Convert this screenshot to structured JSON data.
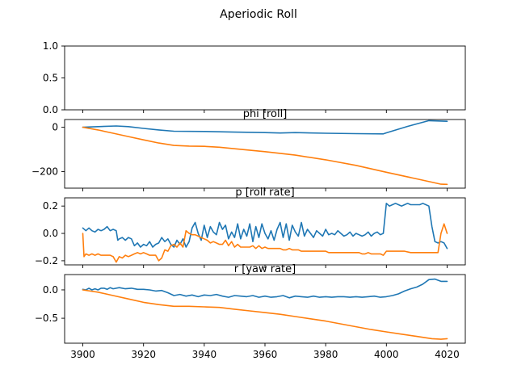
{
  "figure": {
    "suptitle": "Aperiodic Roll",
    "colors": {
      "series_1": "#1f77b4",
      "series_2": "#ff7f0e"
    }
  },
  "chart_data": [
    {
      "type": "line",
      "title": "",
      "xlim": [
        3894,
        4026
      ],
      "ylim": [
        0,
        1
      ],
      "yticks": [
        "0.0",
        "0.5",
        "1.0"
      ],
      "ytick_values": [
        0,
        0.5,
        1.0
      ],
      "xticks": [],
      "series": []
    },
    {
      "type": "line",
      "title": "phi [roll]",
      "xlim": [
        3894,
        4026
      ],
      "ylim": [
        -275,
        35
      ],
      "yticks": [
        "0",
        "−200"
      ],
      "ytick_values": [
        0,
        -200
      ],
      "xticks": [],
      "series": [
        {
          "color": "#1f77b4",
          "x": [
            3900,
            3905,
            3911,
            3915,
            3920,
            3925,
            3930,
            3940,
            3950,
            3960,
            3965,
            3970,
            3980,
            3990,
            3999,
            4000,
            4007,
            4014,
            4020
          ],
          "y": [
            0,
            3,
            6,
            3,
            -5,
            -12,
            -18,
            -19,
            -22,
            -24,
            -26,
            -24,
            -27,
            -29,
            -30,
            -25,
            4,
            30,
            27
          ]
        },
        {
          "color": "#ff7f0e",
          "x": [
            3900,
            3905,
            3910,
            3915,
            3920,
            3925,
            3930,
            3935,
            3940,
            3945,
            3950,
            3960,
            3970,
            3980,
            3990,
            4000,
            4010,
            4015,
            4018,
            4020
          ],
          "y": [
            0,
            -12,
            -27,
            -42,
            -57,
            -71,
            -82,
            -85,
            -86,
            -90,
            -97,
            -110,
            -126,
            -147,
            -172,
            -203,
            -233,
            -248,
            -257,
            -258
          ]
        }
      ]
    },
    {
      "type": "line",
      "title": "p [roll rate]",
      "xlim": [
        3894,
        4026
      ],
      "ylim": [
        -0.23,
        0.26
      ],
      "yticks": [
        "0.2",
        "0.0",
        "−0.2"
      ],
      "ytick_values": [
        0.2,
        0,
        -0.2
      ],
      "xticks": [],
      "series": [
        {
          "color": "#1f77b4",
          "x": [
            3900,
            3901,
            3902,
            3903,
            3904,
            3905,
            3906,
            3907,
            3908,
            3909,
            3910,
            3911,
            3911.5,
            3912,
            3913,
            3914,
            3915,
            3916,
            3917,
            3918,
            3919,
            3920,
            3921,
            3922,
            3923,
            3924,
            3925,
            3926,
            3927,
            3928,
            3929,
            3930,
            3931,
            3932,
            3933,
            3934,
            3935,
            3936,
            3937,
            3938,
            3939,
            3940,
            3941,
            3942,
            3943,
            3944,
            3945,
            3946,
            3947,
            3948,
            3949,
            3950,
            3951,
            3952,
            3953,
            3954,
            3955,
            3956,
            3957,
            3958,
            3959,
            3960,
            3961,
            3962,
            3963,
            3964,
            3965,
            3966,
            3967,
            3968,
            3969,
            3970,
            3971,
            3972,
            3973,
            3974,
            3975,
            3976,
            3977,
            3978,
            3979,
            3980,
            3981,
            3982,
            3983,
            3984,
            3985,
            3986,
            3987,
            3988,
            3989,
            3990,
            3991,
            3992,
            3993,
            3994,
            3995,
            3996,
            3997,
            3998,
            3999,
            4000,
            4001,
            4002,
            4003,
            4004,
            4005,
            4006,
            4007,
            4008,
            4009,
            4010,
            4011,
            4012,
            4013,
            4014,
            4015,
            4016,
            4017,
            4018,
            4019,
            4020
          ],
          "y": [
            0.04,
            0.02,
            0.04,
            0.02,
            0.01,
            0.03,
            0.02,
            0.03,
            0.05,
            0.02,
            0.03,
            0.02,
            -0.05,
            -0.04,
            -0.03,
            -0.05,
            -0.03,
            -0.04,
            -0.09,
            -0.07,
            -0.1,
            -0.08,
            -0.09,
            -0.06,
            -0.1,
            -0.08,
            -0.07,
            -0.03,
            -0.06,
            -0.04,
            -0.08,
            -0.1,
            -0.05,
            -0.08,
            -0.04,
            -0.1,
            -0.06,
            0.04,
            0.08,
            0.0,
            -0.05,
            0.06,
            -0.03,
            0.05,
            0.01,
            -0.01,
            0.08,
            0.03,
            0.06,
            -0.04,
            0.01,
            -0.03,
            0.07,
            -0.04,
            0.03,
            -0.02,
            0.07,
            -0.06,
            0.05,
            -0.03,
            0.07,
            0.0,
            -0.04,
            0.02,
            -0.05,
            0.03,
            0.08,
            -0.03,
            0.07,
            -0.05,
            0.06,
            0.01,
            -0.02,
            0.08,
            -0.02,
            0.03,
            0.0,
            -0.03,
            0.02,
            0.0,
            -0.02,
            0.03,
            -0.01,
            0.0,
            -0.01,
            0.02,
            0.0,
            -0.02,
            -0.01,
            0.01,
            -0.02,
            0.0,
            -0.01,
            -0.02,
            -0.01,
            0.01,
            -0.02,
            0.0,
            0.01,
            -0.01,
            0.0,
            0.22,
            0.2,
            0.21,
            0.22,
            0.21,
            0.2,
            0.21,
            0.22,
            0.21,
            0.21,
            0.21,
            0.21,
            0.22,
            0.21,
            0.2,
            0.05,
            -0.06,
            -0.07,
            -0.06,
            -0.07,
            -0.11
          ]
        },
        {
          "color": "#ff7f0e",
          "x": [
            3900,
            3900.4,
            3901,
            3902,
            3903,
            3904,
            3905,
            3906,
            3907,
            3908,
            3909,
            3910,
            3911,
            3912,
            3913,
            3914,
            3915,
            3916,
            3917,
            3918,
            3919,
            3920,
            3921,
            3922,
            3923,
            3924,
            3925,
            3926,
            3927,
            3928,
            3929,
            3930,
            3931,
            3932,
            3933,
            3934,
            3935,
            3936,
            3937,
            3938,
            3939,
            3940,
            3941,
            3942,
            3943,
            3944,
            3945,
            3946,
            3947,
            3948,
            3949,
            3950,
            3951,
            3952,
            3953,
            3954,
            3955,
            3956,
            3957,
            3958,
            3959,
            3960,
            3961,
            3962,
            3963,
            3964,
            3965,
            3966,
            3967,
            3968,
            3969,
            3970,
            3971,
            3972,
            3973,
            3974,
            3975,
            3976,
            3977,
            3978,
            3979,
            3980,
            3981,
            3982,
            3983,
            3984,
            3985,
            3986,
            3987,
            3988,
            3989,
            3990,
            3991,
            3992,
            3993,
            3994,
            3995,
            3996,
            3997,
            3998,
            3999,
            4000,
            4002,
            4004,
            4006,
            4008,
            4010,
            4012,
            4014,
            4016,
            4017,
            4018,
            4019,
            4020
          ],
          "y": [
            0.0,
            -0.17,
            -0.15,
            -0.16,
            -0.15,
            -0.16,
            -0.15,
            -0.16,
            -0.16,
            -0.16,
            -0.16,
            -0.17,
            -0.21,
            -0.17,
            -0.18,
            -0.16,
            -0.17,
            -0.16,
            -0.15,
            -0.14,
            -0.15,
            -0.14,
            -0.15,
            -0.16,
            -0.16,
            -0.16,
            -0.2,
            -0.18,
            -0.12,
            -0.13,
            -0.09,
            -0.08,
            -0.1,
            -0.07,
            -0.1,
            0.02,
            0.0,
            -0.01,
            -0.01,
            -0.02,
            -0.03,
            -0.04,
            -0.05,
            -0.07,
            -0.06,
            -0.07,
            -0.08,
            -0.08,
            -0.05,
            -0.09,
            -0.06,
            -0.1,
            -0.08,
            -0.1,
            -0.1,
            -0.1,
            -0.1,
            -0.09,
            -0.11,
            -0.09,
            -0.11,
            -0.1,
            -0.11,
            -0.11,
            -0.11,
            -0.11,
            -0.11,
            -0.12,
            -0.12,
            -0.11,
            -0.12,
            -0.12,
            -0.12,
            -0.13,
            -0.13,
            -0.13,
            -0.13,
            -0.13,
            -0.13,
            -0.13,
            -0.13,
            -0.13,
            -0.14,
            -0.14,
            -0.14,
            -0.14,
            -0.14,
            -0.14,
            -0.14,
            -0.14,
            -0.14,
            -0.14,
            -0.14,
            -0.15,
            -0.15,
            -0.14,
            -0.15,
            -0.15,
            -0.15,
            -0.15,
            -0.16,
            -0.13,
            -0.13,
            -0.13,
            -0.13,
            -0.14,
            -0.14,
            -0.14,
            -0.14,
            -0.14,
            -0.14,
            0.0,
            0.07,
            0.0
          ]
        }
      ]
    },
    {
      "type": "line",
      "title": "r [yaw rate]",
      "xlim": [
        3894,
        4026
      ],
      "ylim": [
        -0.94,
        0.27
      ],
      "yticks": [
        "0.0",
        "−0.5"
      ],
      "ytick_values": [
        0,
        -0.5
      ],
      "xticks": [
        "3900",
        "3920",
        "3940",
        "3960",
        "3980",
        "4000",
        "4020"
      ],
      "xtick_values": [
        3900,
        3920,
        3940,
        3960,
        3980,
        4000,
        4020
      ],
      "series": [
        {
          "color": "#1f77b4",
          "x": [
            3900,
            3901,
            3902,
            3903,
            3904,
            3905,
            3906,
            3907,
            3908,
            3909,
            3910,
            3912,
            3914,
            3916,
            3918,
            3920,
            3922,
            3924,
            3926,
            3928,
            3930,
            3932,
            3934,
            3936,
            3938,
            3940,
            3942,
            3944,
            3946,
            3948,
            3950,
            3952,
            3954,
            3956,
            3958,
            3960,
            3962,
            3964,
            3966,
            3968,
            3970,
            3972,
            3974,
            3976,
            3978,
            3980,
            3982,
            3984,
            3986,
            3988,
            3990,
            3992,
            3994,
            3996,
            3998,
            4000,
            4002,
            4004,
            4006,
            4008,
            4010,
            4012,
            4014,
            4016,
            4018,
            4020
          ],
          "y": [
            0.01,
            0.0,
            0.03,
            0.0,
            0.02,
            0.0,
            0.03,
            0.03,
            0.01,
            0.04,
            0.02,
            0.04,
            0.02,
            0.03,
            0.01,
            0.01,
            0.0,
            -0.02,
            -0.01,
            -0.05,
            -0.1,
            -0.08,
            -0.11,
            -0.09,
            -0.12,
            -0.09,
            -0.1,
            -0.08,
            -0.11,
            -0.13,
            -0.1,
            -0.11,
            -0.12,
            -0.1,
            -0.13,
            -0.11,
            -0.13,
            -0.12,
            -0.1,
            -0.14,
            -0.11,
            -0.12,
            -0.13,
            -0.11,
            -0.13,
            -0.12,
            -0.13,
            -0.12,
            -0.12,
            -0.13,
            -0.12,
            -0.13,
            -0.12,
            -0.11,
            -0.13,
            -0.12,
            -0.1,
            -0.07,
            -0.02,
            0.02,
            0.05,
            0.1,
            0.18,
            0.19,
            0.15,
            0.15
          ]
        },
        {
          "color": "#ff7f0e",
          "x": [
            3900,
            3905,
            3910,
            3915,
            3920,
            3925,
            3930,
            3935,
            3940,
            3945,
            3950,
            3955,
            3960,
            3965,
            3970,
            3975,
            3980,
            3985,
            3990,
            3995,
            4000,
            4005,
            4010,
            4015,
            4018,
            4020
          ],
          "y": [
            0.0,
            -0.04,
            -0.1,
            -0.16,
            -0.22,
            -0.26,
            -0.29,
            -0.29,
            -0.3,
            -0.31,
            -0.34,
            -0.37,
            -0.4,
            -0.43,
            -0.47,
            -0.51,
            -0.55,
            -0.6,
            -0.65,
            -0.7,
            -0.74,
            -0.78,
            -0.82,
            -0.86,
            -0.87,
            -0.86
          ]
        }
      ]
    }
  ]
}
